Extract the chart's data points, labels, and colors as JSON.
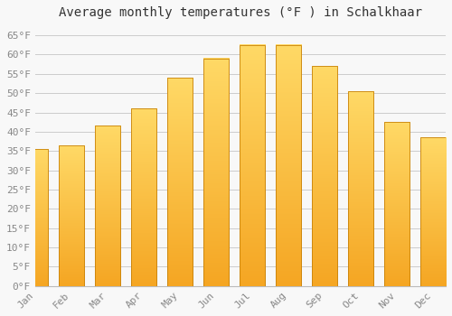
{
  "title": "Average monthly temperatures (°F ) in Schalkhaar",
  "months": [
    "Jan",
    "Feb",
    "Mar",
    "Apr",
    "May",
    "Jun",
    "Jul",
    "Aug",
    "Sep",
    "Oct",
    "Nov",
    "Dec"
  ],
  "values": [
    35.5,
    36.5,
    41.5,
    46.0,
    54.0,
    59.0,
    62.5,
    62.5,
    57.0,
    50.5,
    42.5,
    38.5
  ],
  "bar_color_bottom": "#F5A623",
  "bar_color_top": "#FFD966",
  "bar_edge_color": "#C8820A",
  "background_color": "#F8F8F8",
  "grid_color": "#CCCCCC",
  "yticks": [
    0,
    5,
    10,
    15,
    20,
    25,
    30,
    35,
    40,
    45,
    50,
    55,
    60,
    65
  ],
  "ylim": [
    0,
    68
  ],
  "title_fontsize": 10,
  "tick_fontsize": 8,
  "font_family": "monospace",
  "tick_color": "#888888",
  "title_color": "#333333"
}
